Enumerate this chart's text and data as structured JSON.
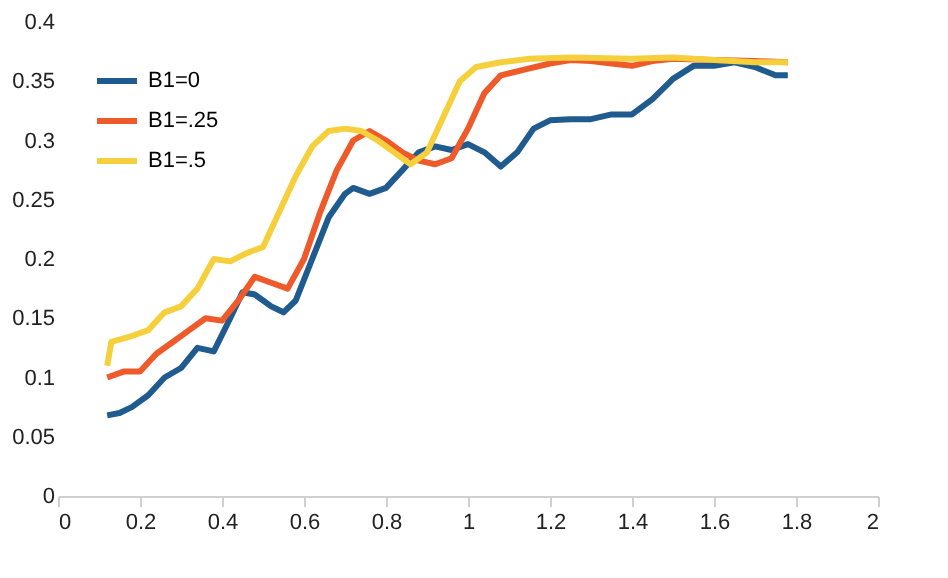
{
  "chart_data": {
    "type": "line",
    "xlim": [
      0,
      2
    ],
    "xticks": [
      0,
      0.2,
      0.4,
      0.6,
      0.8,
      1,
      1.2,
      1.4,
      1.6,
      1.8,
      2
    ],
    "ylim": [
      0,
      0.4
    ],
    "yticks": [
      0,
      0.05,
      0.1,
      0.15,
      0.2,
      0.25,
      0.3,
      0.35,
      0.4
    ],
    "grid": false,
    "legend": "top left",
    "marker": "none",
    "line_style": "solid",
    "series": [
      {
        "name": "B1=0",
        "color": "#1f5b8e",
        "x": [
          0.12,
          0.15,
          0.18,
          0.22,
          0.26,
          0.3,
          0.34,
          0.38,
          0.42,
          0.45,
          0.48,
          0.52,
          0.55,
          0.58,
          0.62,
          0.66,
          0.7,
          0.72,
          0.76,
          0.8,
          0.84,
          0.88,
          0.92,
          0.96,
          1.0,
          1.04,
          1.08,
          1.12,
          1.16,
          1.2,
          1.25,
          1.3,
          1.35,
          1.4,
          1.45,
          1.5,
          1.55,
          1.6,
          1.65,
          1.7,
          1.75,
          1.78
        ],
        "values": [
          0.068,
          0.07,
          0.075,
          0.085,
          0.1,
          0.108,
          0.125,
          0.122,
          0.15,
          0.172,
          0.17,
          0.16,
          0.155,
          0.165,
          0.2,
          0.235,
          0.255,
          0.26,
          0.255,
          0.26,
          0.275,
          0.29,
          0.295,
          0.292,
          0.297,
          0.29,
          0.278,
          0.29,
          0.31,
          0.317,
          0.318,
          0.318,
          0.322,
          0.322,
          0.335,
          0.352,
          0.363,
          0.363,
          0.366,
          0.362,
          0.355,
          0.355
        ]
      },
      {
        "name": "B1=.25",
        "color": "#ef5a2a",
        "x": [
          0.12,
          0.16,
          0.2,
          0.24,
          0.28,
          0.32,
          0.36,
          0.4,
          0.44,
          0.48,
          0.52,
          0.56,
          0.6,
          0.64,
          0.68,
          0.72,
          0.76,
          0.8,
          0.84,
          0.88,
          0.92,
          0.96,
          1.0,
          1.04,
          1.08,
          1.14,
          1.2,
          1.25,
          1.3,
          1.35,
          1.4,
          1.45,
          1.5,
          1.6,
          1.7,
          1.78
        ],
        "values": [
          0.1,
          0.105,
          0.105,
          0.12,
          0.13,
          0.14,
          0.15,
          0.148,
          0.165,
          0.185,
          0.18,
          0.175,
          0.2,
          0.24,
          0.275,
          0.3,
          0.308,
          0.3,
          0.29,
          0.283,
          0.28,
          0.285,
          0.31,
          0.34,
          0.355,
          0.36,
          0.365,
          0.368,
          0.367,
          0.365,
          0.363,
          0.367,
          0.369,
          0.368,
          0.367,
          0.366
        ]
      },
      {
        "name": "B1=.5",
        "color": "#f5d03c",
        "x": [
          0.12,
          0.13,
          0.18,
          0.22,
          0.26,
          0.3,
          0.34,
          0.38,
          0.42,
          0.46,
          0.5,
          0.54,
          0.58,
          0.62,
          0.66,
          0.7,
          0.74,
          0.78,
          0.82,
          0.86,
          0.9,
          0.94,
          0.98,
          1.02,
          1.08,
          1.15,
          1.25,
          1.4,
          1.5,
          1.6,
          1.7,
          1.78
        ],
        "values": [
          0.11,
          0.13,
          0.135,
          0.14,
          0.155,
          0.16,
          0.175,
          0.2,
          0.198,
          0.205,
          0.21,
          0.24,
          0.27,
          0.295,
          0.308,
          0.31,
          0.308,
          0.3,
          0.29,
          0.28,
          0.29,
          0.32,
          0.35,
          0.362,
          0.366,
          0.369,
          0.37,
          0.369,
          0.37,
          0.368,
          0.366,
          0.366
        ]
      }
    ]
  }
}
